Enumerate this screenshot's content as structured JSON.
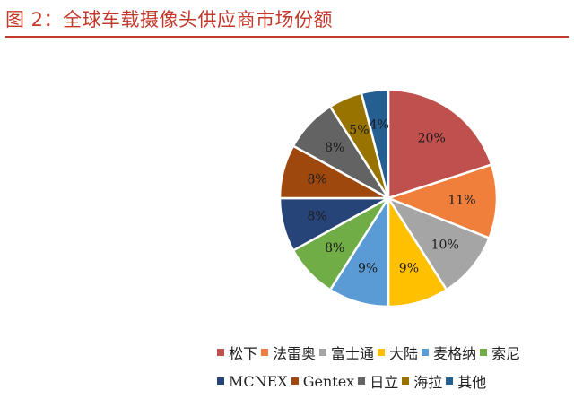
{
  "figure_title": "图 2：全球车载摄像头供应商市场份额",
  "chart_data": {
    "type": "pie",
    "title": "",
    "start_angle_deg": 0,
    "direction": "clockwise",
    "label_format": "{value}%",
    "slices": [
      {
        "label": "松下",
        "value": 20,
        "color": "#c0504d"
      },
      {
        "label": "法雷奥",
        "value": 11,
        "color": "#f07f3c"
      },
      {
        "label": "富士通",
        "value": 10,
        "color": "#a5a5a5"
      },
      {
        "label": "大陆",
        "value": 9,
        "color": "#ffc000"
      },
      {
        "label": "麦格纳",
        "value": 9,
        "color": "#5b9bd5"
      },
      {
        "label": "索尼",
        "value": 8,
        "color": "#70ad47"
      },
      {
        "label": "MCNEX",
        "value": 8,
        "color": "#264478"
      },
      {
        "label": "Gentex",
        "value": 8,
        "color": "#9e480e"
      },
      {
        "label": "日立",
        "value": 8,
        "color": "#636363"
      },
      {
        "label": "海拉",
        "value": 5,
        "color": "#997300"
      },
      {
        "label": "其他",
        "value": 4,
        "color": "#255e91"
      }
    ],
    "legend_position": "bottom"
  }
}
